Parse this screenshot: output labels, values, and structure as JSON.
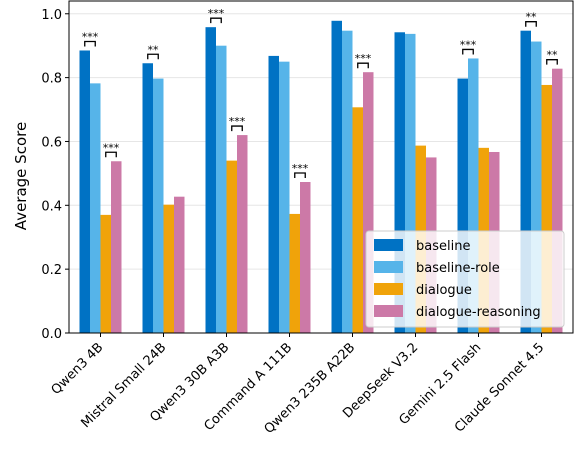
{
  "chart_data": {
    "type": "bar",
    "ylabel": "Average Score",
    "xlabel": "",
    "ylim": [
      0,
      1.04
    ],
    "yticks": [
      "0.0",
      "0.2",
      "0.4",
      "0.6",
      "0.8",
      "1.0"
    ],
    "grid": "y",
    "legend_position": "bottom-right",
    "categories": [
      "Qwen3 4B",
      "Mistral Small 24B",
      "Qwen3 30B A3B",
      "Command A 111B",
      "Qwen3 235B A22B",
      "DeepSeek V3.2",
      "Gemini 2.5 Flash",
      "Claude Sonnet 4.5"
    ],
    "series": [
      {
        "name": "baseline",
        "color": "#0072c4",
        "values": [
          0.885,
          0.845,
          0.958,
          0.868,
          0.978,
          0.942,
          0.797,
          0.947
        ]
      },
      {
        "name": "baseline-role",
        "color": "#56b4e9",
        "values": [
          0.782,
          0.797,
          0.9,
          0.85,
          0.947,
          0.937,
          0.86,
          0.913
        ]
      },
      {
        "name": "dialogue",
        "color": "#f0a30a",
        "values": [
          0.37,
          0.402,
          0.54,
          0.373,
          0.707,
          0.587,
          0.58,
          0.777
        ]
      },
      {
        "name": "dialogue-reasoning",
        "color": "#cc79a7",
        "values": [
          0.538,
          0.427,
          0.62,
          0.473,
          0.817,
          0.55,
          0.567,
          0.828
        ]
      }
    ],
    "annotations": [
      {
        "category": 0,
        "pair": [
          0,
          1
        ],
        "label": "***"
      },
      {
        "category": 0,
        "pair": [
          2,
          3
        ],
        "label": "***"
      },
      {
        "category": 1,
        "pair": [
          0,
          1
        ],
        "label": "**"
      },
      {
        "category": 2,
        "pair": [
          0,
          1
        ],
        "label": "***"
      },
      {
        "category": 2,
        "pair": [
          2,
          3
        ],
        "label": "***"
      },
      {
        "category": 3,
        "pair": [
          2,
          3
        ],
        "label": "***"
      },
      {
        "category": 4,
        "pair": [
          2,
          3
        ],
        "label": "***"
      },
      {
        "category": 6,
        "pair": [
          0,
          1
        ],
        "label": "***"
      },
      {
        "category": 7,
        "pair": [
          0,
          1
        ],
        "label": "**"
      },
      {
        "category": 7,
        "pair": [
          2,
          3
        ],
        "label": "**"
      }
    ]
  }
}
